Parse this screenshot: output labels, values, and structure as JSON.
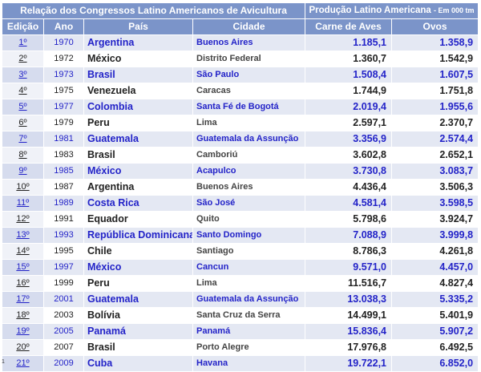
{
  "header": {
    "title": "Relação dos Congressos Latino Americanos de Avicultura",
    "production_title": "Produção Latino Americana",
    "production_unit": "- Em 000 tm",
    "columns": {
      "edicao": "Edição",
      "ano": "Ano",
      "pais": "País",
      "cidade": "Cidade",
      "carne": "Carne de Aves",
      "ovos": "Ovos"
    }
  },
  "rows": [
    {
      "edicao": "1º",
      "ano": "1970",
      "pais": "Argentina",
      "cidade": "Buenos Aires",
      "carne": "1.185,1",
      "ovos": "1.358,9"
    },
    {
      "edicao": "2º",
      "ano": "1972",
      "pais": "México",
      "cidade": "Distrito Federal",
      "carne": "1.360,7",
      "ovos": "1.542,9"
    },
    {
      "edicao": "3º",
      "ano": "1973",
      "pais": "Brasil",
      "cidade": "São Paulo",
      "carne": "1.508,4",
      "ovos": "1.607,5"
    },
    {
      "edicao": "4º",
      "ano": "1975",
      "pais": "Venezuela",
      "cidade": "Caracas",
      "carne": "1.744,9",
      "ovos": "1.751,8"
    },
    {
      "edicao": "5º",
      "ano": "1977",
      "pais": "Colombia",
      "cidade": "Santa Fé de Bogotá",
      "carne": "2.019,4",
      "ovos": "1.955,6"
    },
    {
      "edicao": "6º",
      "ano": "1979",
      "pais": "Peru",
      "cidade": "Lima",
      "carne": "2.597,1",
      "ovos": "2.370,7"
    },
    {
      "edicao": "7º",
      "ano": "1981",
      "pais": "Guatemala",
      "cidade": "Guatemala da Assunção",
      "carne": "3.356,9",
      "ovos": "2.574,4"
    },
    {
      "edicao": "8º",
      "ano": "1983",
      "pais": "Brasil",
      "cidade": "Camboriú",
      "carne": "3.602,8",
      "ovos": "2.652,1"
    },
    {
      "edicao": "9º",
      "ano": "1985",
      "pais": "México",
      "cidade": "Acapulco",
      "carne": "3.730,8",
      "ovos": "3.083,7"
    },
    {
      "edicao": "10º",
      "ano": "1987",
      "pais": "Argentina",
      "cidade": "Buenos Aires",
      "carne": "4.436,4",
      "ovos": "3.506,3"
    },
    {
      "edicao": "11º",
      "ano": "1989",
      "pais": "Costa Rica",
      "cidade": "São José",
      "carne": "4.581,4",
      "ovos": "3.598,5"
    },
    {
      "edicao": "12º",
      "ano": "1991",
      "pais": "Equador",
      "cidade": "Quito",
      "carne": "5.798,6",
      "ovos": "3.924,7"
    },
    {
      "edicao": "13º",
      "ano": "1993",
      "pais": "República Dominicana",
      "cidade": "Santo Domingo",
      "carne": "7.088,9",
      "ovos": "3.999,8"
    },
    {
      "edicao": "14º",
      "ano": "1995",
      "pais": "Chile",
      "cidade": "Santiago",
      "carne": "8.786,3",
      "ovos": "4.261,8"
    },
    {
      "edicao": "15º",
      "ano": "1997",
      "pais": "México",
      "cidade": "Cancun",
      "carne": "9.571,0",
      "ovos": "4.457,0"
    },
    {
      "edicao": "16º",
      "ano": "1999",
      "pais": "Peru",
      "cidade": "Lima",
      "carne": "11.516,7",
      "ovos": "4.827,4"
    },
    {
      "edicao": "17º",
      "ano": "2001",
      "pais": "Guatemala",
      "cidade": "Guatemala da Assunção",
      "carne": "13.038,3",
      "ovos": "5.335,2"
    },
    {
      "edicao": "18º",
      "ano": "2003",
      "pais": "Bolívia",
      "cidade": "Santa Cruz da Serra",
      "carne": "14.499,1",
      "ovos": "5.401,9"
    },
    {
      "edicao": "19º",
      "ano": "2005",
      "pais": "Panamá",
      "cidade": "Panamá",
      "carne": "15.836,4",
      "ovos": "5.907,2"
    },
    {
      "edicao": "20º",
      "ano": "2007",
      "pais": "Brasil",
      "cidade": "Porto Alegre",
      "carne": "17.976,8",
      "ovos": "6.492,5"
    },
    {
      "edicao": "21º",
      "ano": "2009",
      "pais": "Cuba",
      "cidade": "Havana",
      "carne": "19.722,1",
      "ovos": "6.852,0"
    }
  ],
  "footnote": "1",
  "colors": {
    "header_bg": "#7b94c9",
    "row_odd_bg": "#e4e8f3",
    "accent_text": "#2323c8"
  }
}
